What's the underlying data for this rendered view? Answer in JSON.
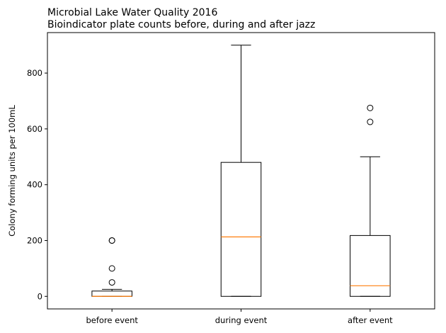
{
  "chart_data": {
    "type": "box",
    "title": "Microbial Lake Water Quality 2016",
    "subtitle": "Bioindicator plate counts before, during and after jazz",
    "xlabel": "",
    "ylabel": "Colony forming units per 100mL",
    "ylim": [
      -45,
      945
    ],
    "yticks": [
      0,
      200,
      400,
      600,
      800
    ],
    "grid": false,
    "categories": [
      "before event",
      "during event",
      "after event"
    ],
    "boxes": [
      {
        "category": "before event",
        "whisker_low": 0,
        "q1": 0,
        "median": 0,
        "q3": 19,
        "whisker_high": 25,
        "outliers": [
          50,
          100,
          200,
          200
        ]
      },
      {
        "category": "during event",
        "whisker_low": 0,
        "q1": 0,
        "median": 213,
        "q3": 480,
        "whisker_high": 900,
        "outliers": []
      },
      {
        "category": "after event",
        "whisker_low": 0,
        "q1": 0,
        "median": 38,
        "q3": 218,
        "whisker_high": 500,
        "outliers": [
          625,
          675
        ]
      }
    ],
    "colors": {
      "box": "#000000",
      "median": "#ff7f0e",
      "outlier": "#000000"
    }
  }
}
